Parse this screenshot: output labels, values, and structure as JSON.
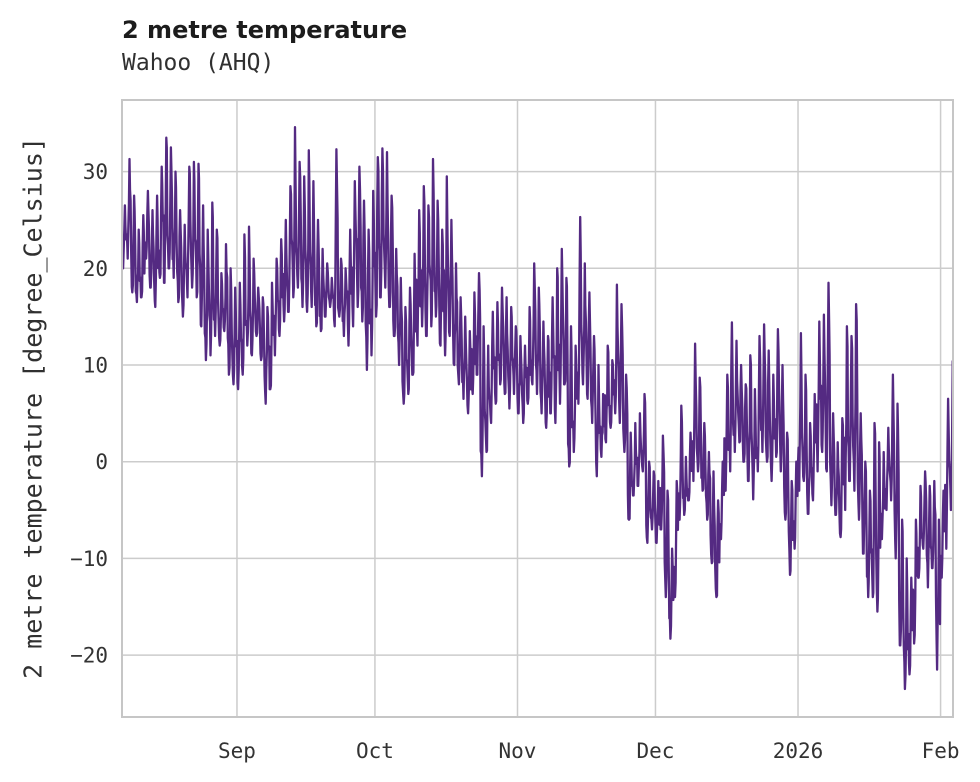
{
  "header": {
    "title": "2 metre temperature",
    "subtitle": "Wahoo (AHQ)"
  },
  "chart_data": {
    "type": "line",
    "title": "2 metre temperature",
    "subtitle": "Wahoo (AHQ)",
    "xlabel": "",
    "ylabel": "2 metre temperature [degree_Celsius]",
    "unit": "degree_Celsius",
    "grid": true,
    "legend": "none",
    "line_color": "#542a82",
    "grid_color": "#cccccc",
    "border_color": "#c6c6c6",
    "ylim": [
      -26.4,
      37.4
    ],
    "xlim_days": [
      0,
      180.7
    ],
    "y_ticks": [
      30,
      20,
      10,
      0,
      -10,
      -20
    ],
    "y_tick_labels": [
      "30",
      "20",
      "10",
      "0",
      "−10",
      "−20"
    ],
    "x_tick_labels": [
      "Sep",
      "Oct",
      "Nov",
      "Dec",
      "2026",
      "Feb"
    ],
    "x_tick_day_offsets": [
      25,
      55,
      86,
      116,
      147,
      178
    ],
    "series": [
      {
        "name": "2 metre temperature",
        "description": "daily min/max envelope read from the plotted hourly trace, day 0 ≈ Aug 7",
        "daily_lo": [
          20,
          21,
          17.5,
          16.5,
          17,
          21,
          18,
          16,
          19,
          18.5,
          20,
          19,
          16.5,
          15,
          17,
          18,
          17,
          14,
          10.5,
          11,
          13,
          12,
          13.5,
          9,
          8,
          7.5,
          9,
          12,
          11,
          13,
          10.5,
          6,
          7.5,
          11,
          13,
          14.5,
          15.5,
          17,
          18,
          16,
          15.5,
          16,
          14,
          13.5,
          15,
          16,
          14,
          15,
          13,
          12,
          14,
          16,
          14.5,
          9.5,
          11,
          15,
          17,
          18,
          16,
          13,
          10,
          6,
          7,
          9,
          12,
          14,
          13,
          14,
          15,
          12,
          11,
          13,
          10,
          8,
          6.5,
          5,
          7,
          9,
          -1.5,
          1,
          4,
          6,
          8,
          7,
          5.5,
          7,
          5,
          4,
          6,
          8,
          7,
          5,
          3.5,
          5,
          4,
          6,
          8,
          -0.5,
          1,
          6,
          8,
          6.5,
          4,
          -1.5,
          0.5,
          2,
          3.5,
          5,
          4,
          1,
          -6,
          -3.5,
          -2.5,
          -1,
          -8.4,
          -7,
          -8.4,
          -7,
          -14,
          -18.3,
          -14,
          -6,
          -5.5,
          -4,
          -2,
          -1,
          -3,
          -6,
          -10.5,
          -14,
          -8,
          -3,
          -1,
          1,
          2,
          0,
          -2,
          -3.9,
          -1,
          1,
          0,
          -2,
          0.5,
          -1,
          -6,
          -11.7,
          -9,
          -3,
          -2,
          -5.4,
          -4,
          -1,
          1,
          -1,
          -4.5,
          -5.5,
          -7.8,
          -5,
          -2,
          -3,
          -6,
          -9.5,
          -14,
          -14,
          -15.5,
          -8,
          -5,
          -4,
          -10,
          -19,
          -23.5,
          -22,
          -18.8,
          -12,
          -9,
          -13,
          -11,
          -21.5,
          -12,
          -9,
          -5,
          -5.5
        ],
        "daily_hi": [
          26.5,
          31.3,
          27.5,
          24,
          25.5,
          28,
          26,
          27.5,
          30.5,
          33.5,
          32.5,
          30,
          26,
          24.5,
          30.5,
          31,
          30.8,
          26.5,
          24,
          26.8,
          24,
          19.5,
          22.5,
          20,
          18,
          18.5,
          23.5,
          24.3,
          21,
          18,
          17,
          16,
          18.5,
          21,
          23,
          25,
          28.5,
          34.6,
          31,
          29.5,
          32.2,
          29,
          25,
          22,
          20.5,
          19,
          32.3,
          21,
          20,
          24,
          29,
          30.5,
          27,
          24,
          28,
          31.5,
          32.4,
          32,
          27.5,
          22,
          19,
          16,
          18,
          21.5,
          26,
          28.5,
          26.5,
          31.3,
          27,
          24,
          29.5,
          25,
          20.5,
          17,
          15,
          13.5,
          17.5,
          19.5,
          14,
          12,
          15.5,
          16.5,
          18,
          17,
          16,
          14,
          13,
          12,
          16,
          20.5,
          18,
          14.5,
          13,
          17,
          20,
          22,
          19,
          14,
          12,
          25.3,
          20.5,
          17.5,
          13,
          10,
          7,
          12,
          10.5,
          18.3,
          16.3,
          9,
          3,
          4,
          5,
          7,
          0,
          -1,
          -2,
          2.7,
          -3,
          -9,
          -2,
          5.8,
          0.5,
          3,
          12.2,
          8.7,
          4,
          1,
          -1,
          -4,
          0,
          9,
          14.4,
          12.5,
          10,
          8,
          11,
          7.5,
          13,
          14.2,
          11.5,
          9,
          13.7,
          10,
          3,
          -2,
          0,
          13.3,
          9,
          4,
          7,
          14.5,
          15.2,
          18.5,
          5,
          2,
          4.5,
          14,
          13,
          16.3,
          5,
          0,
          -3,
          4,
          2,
          1,
          3.5,
          9,
          6,
          -6,
          -10,
          -12,
          -6,
          -2.5,
          -1,
          -2.5,
          -2,
          -6,
          -3,
          6.5,
          10.4,
          0
        ]
      }
    ]
  }
}
